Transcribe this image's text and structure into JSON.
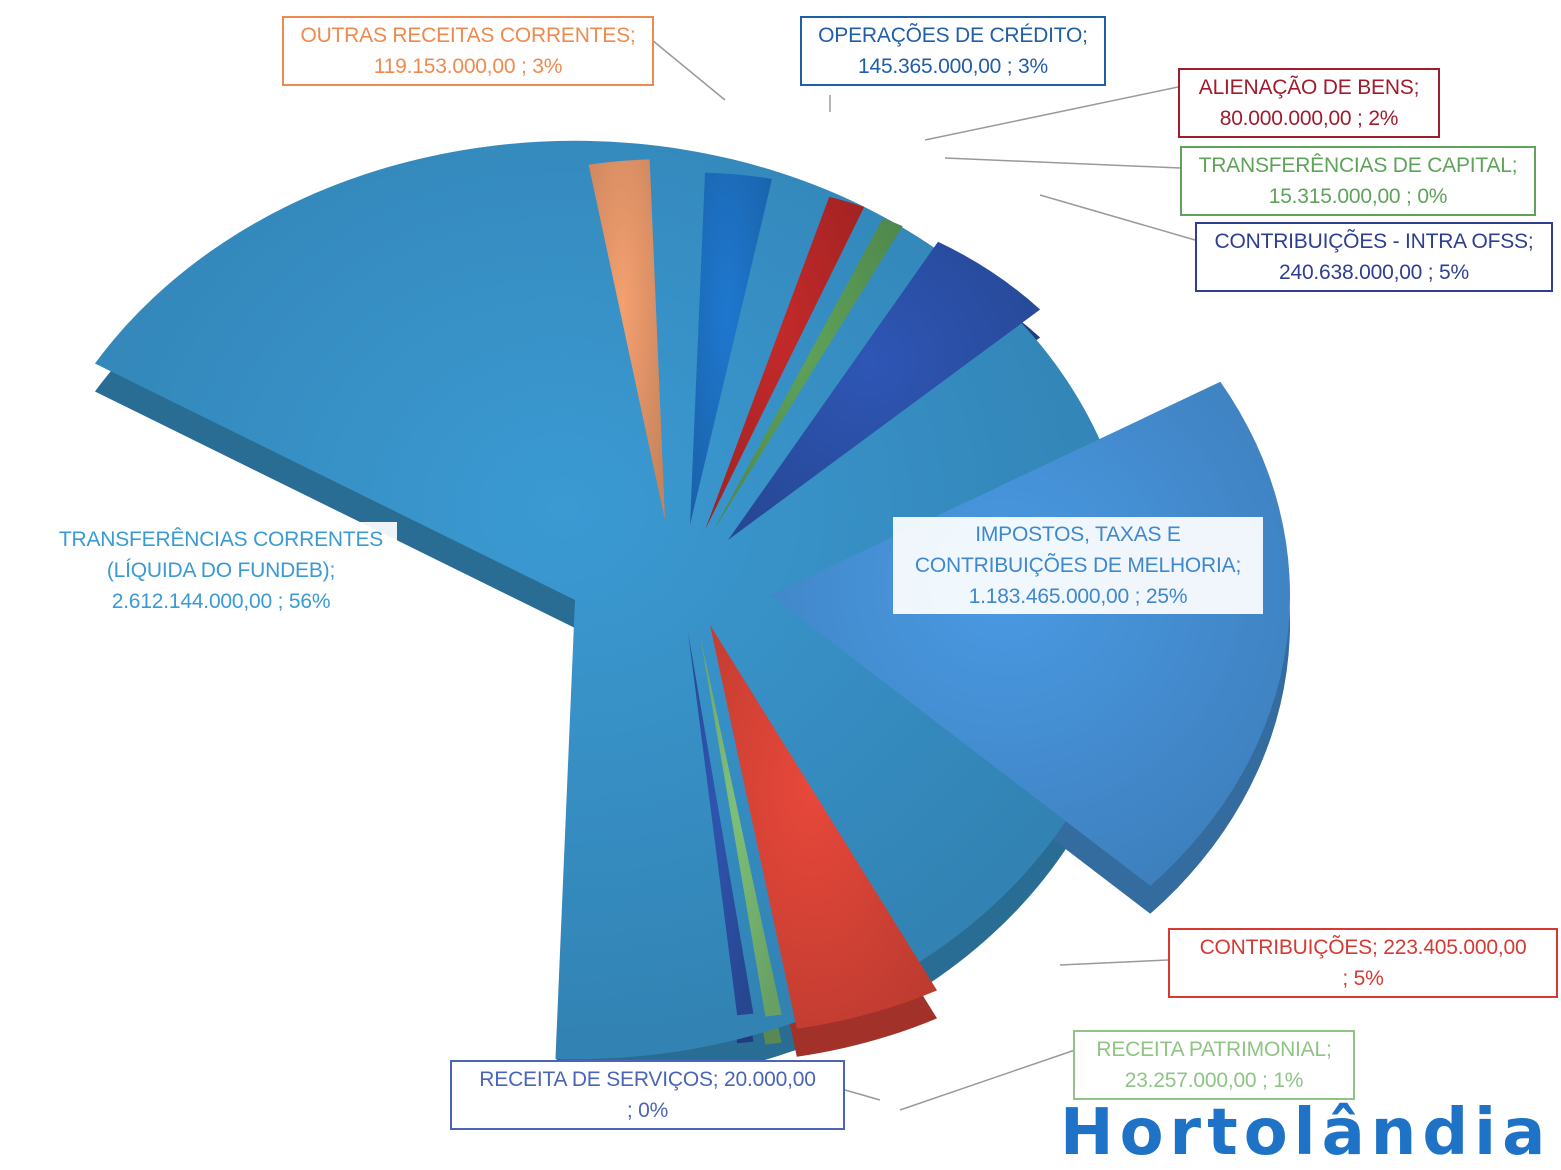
{
  "chart_data": {
    "type": "pie",
    "style": "3d-exploded",
    "slices": [
      {
        "name": "TRANSFERÊNCIAS CORRENTES (LÍQUIDA DO FUNDEB)",
        "value": 2612144000.0,
        "value_text": "2.612.144.000,00",
        "percent_text": "56%",
        "color": "#3b9ad3",
        "label_color": "#3b9ad3",
        "label_lines": [
          "TRANSFERÊNCIAS CORRENTES",
          "(LÍQUIDA DO FUNDEB);",
          "2.612.144.000,00 ; 56%"
        ]
      },
      {
        "name": "OUTRAS RECEITAS CORRENTES",
        "value": 119153000.0,
        "value_text": "119.153.000,00",
        "percent_text": "3%",
        "color": "#f4a070",
        "label_color": "#ef8a4e",
        "label_lines": [
          "OUTRAS RECEITAS CORRENTES;",
          "119.153.000,00 ; 3%"
        ]
      },
      {
        "name": "OPERAÇÕES DE CRÉDITO",
        "value": 145365000.0,
        "value_text": "145.365.000,00",
        "percent_text": "3%",
        "color": "#1f78cf",
        "label_color": "#1f5ea8",
        "label_lines": [
          "OPERAÇÕES DE CRÉDITO;",
          "145.365.000,00 ; 3%"
        ]
      },
      {
        "name": "ALIENAÇÃO DE BENS",
        "value": 80000000.0,
        "value_text": "80.000.000,00",
        "percent_text": "2%",
        "color": "#c42a2a",
        "label_color": "#a01c2c",
        "label_lines": [
          "ALIENAÇÃO DE BENS;",
          "80.000.000,00 ; 2%"
        ]
      },
      {
        "name": "TRANSFERÊNCIAS DE CAPITAL",
        "value": 15315000.0,
        "value_text": "15.315.000,00",
        "percent_text": "0%",
        "color": "#5fa35a",
        "label_color": "#5fa35a",
        "label_lines": [
          "TRANSFERÊNCIAS DE CAPITAL;",
          "15.315.000,00 ; 0%"
        ]
      },
      {
        "name": "CONTRIBUIÇÕES - INTRA OFSS",
        "value": 240638000.0,
        "value_text": "240.638.000,00",
        "percent_text": "5%",
        "color": "#2e56b5",
        "label_color": "#2e3f92",
        "label_lines": [
          "CONTRIBUIÇÕES - INTRA OFSS;",
          "240.638.000,00 ; 5%"
        ]
      },
      {
        "name": "IMPOSTOS, TAXAS E CONTRIBUIÇÕES DE MELHORIA",
        "value": 1183465000.0,
        "value_text": "1.183.465.000,00",
        "percent_text": "25%",
        "color": "#4a9ae4",
        "label_color": "#3f88cc",
        "label_lines": [
          "IMPOSTOS, TAXAS E",
          "CONTRIBUIÇÕES DE MELHORIA;",
          "1.183.465.000,00 ; 25%"
        ]
      },
      {
        "name": "CONTRIBUIÇÕES",
        "value": 223405000.0,
        "value_text": "223.405.000,00",
        "percent_text": "5%",
        "color": "#e8483a",
        "label_color": "#d63a32",
        "label_lines": [
          "CONTRIBUIÇÕES;  223.405.000,00",
          "; 5%"
        ]
      },
      {
        "name": "RECEITA PATRIMONIAL",
        "value": 23257000.0,
        "value_text": "23.257.000,00",
        "percent_text": "1%",
        "color": "#7fc27a",
        "label_color": "#8fc484",
        "label_lines": [
          "RECEITA PATRIMONIAL;",
          "23.257.000,00 ; 1%"
        ]
      },
      {
        "name": "RECEITA DE SERVIÇOS",
        "value": 20000.0,
        "value_text": "20.000,00",
        "percent_text": "0%",
        "color": "#2f55b0",
        "label_color": "#4a64b8",
        "label_lines": [
          "RECEITA DE SERVIÇOS;  20.000,00",
          "; 0%"
        ]
      }
    ]
  },
  "watermark_text": "Hortolândia"
}
